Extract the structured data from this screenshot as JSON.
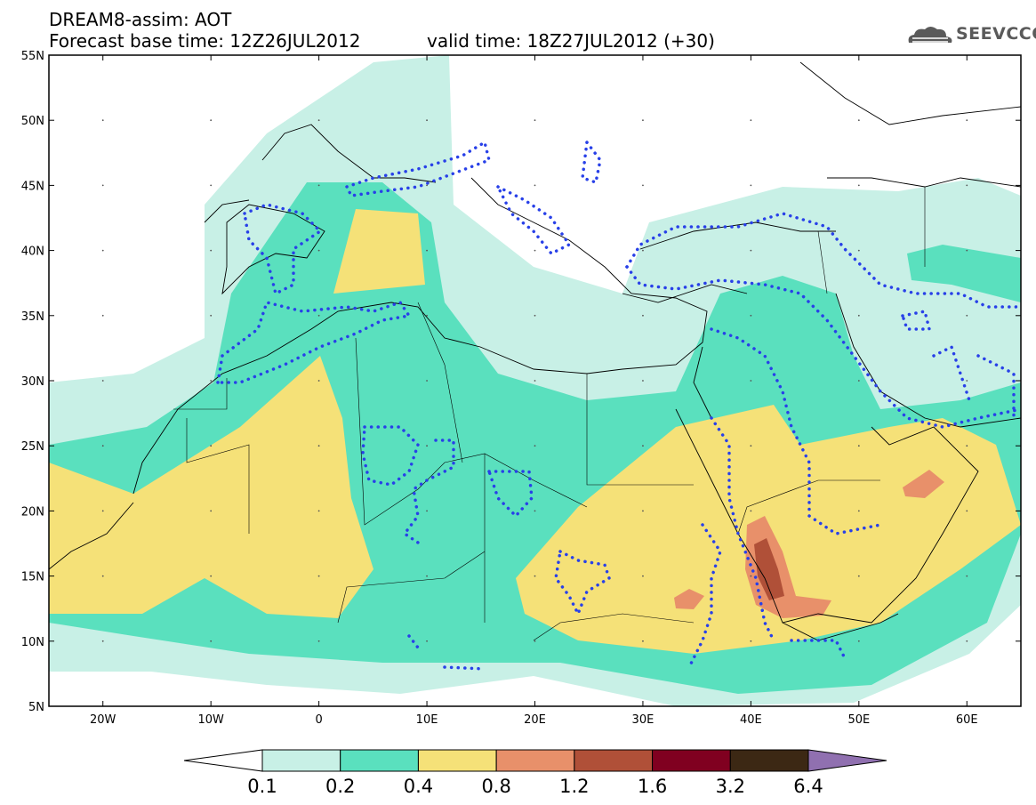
{
  "header": {
    "line1": "DREAM8-assim: AOT",
    "line2_left": "Forecast base time: 12Z26JUL2012",
    "line2_right": "valid time: 18Z27JUL2012 (+30)"
  },
  "logo": {
    "text": "SEEVCCC",
    "icon": "cloud-icon"
  },
  "map": {
    "lat_labels": [
      "55N",
      "50N",
      "45N",
      "40N",
      "35N",
      "30N",
      "25N",
      "20N",
      "15N",
      "10N",
      "5N"
    ],
    "lon_labels": [
      "20W",
      "10W",
      "0",
      "10E",
      "20E",
      "30E",
      "40E",
      "50E",
      "60E"
    ],
    "extent": {
      "lon": [
        -25,
        65
      ],
      "lat": [
        5,
        55
      ]
    }
  },
  "colorbar": {
    "labels": [
      "0.1",
      "0.2",
      "0.4",
      "0.8",
      "1.2",
      "1.6",
      "3.2",
      "6.4"
    ],
    "colors": [
      "#ffffff",
      "#c8f0e6",
      "#5ae0be",
      "#f5e178",
      "#e8906a",
      "#b05038",
      "#800020",
      "#3c2814",
      "#9070b0"
    ]
  }
}
